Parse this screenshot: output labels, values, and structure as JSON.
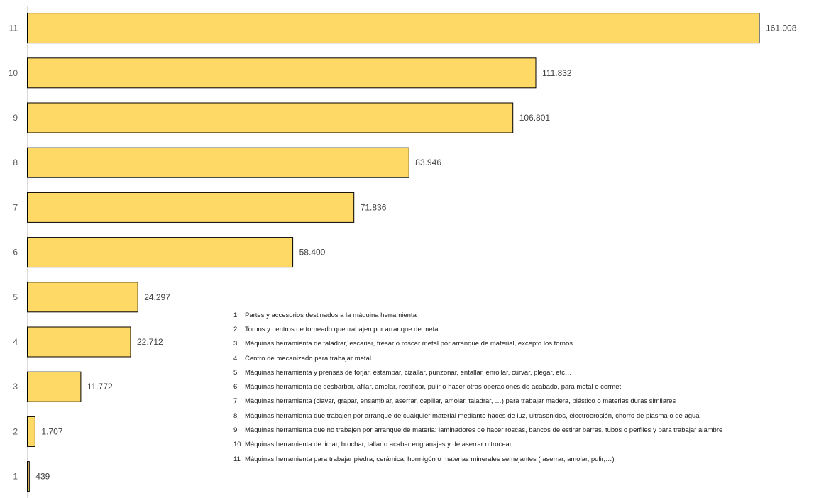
{
  "chart_data": {
    "type": "bar",
    "orientation": "horizontal",
    "categories": [
      "1",
      "2",
      "3",
      "4",
      "5",
      "6",
      "7",
      "8",
      "9",
      "10",
      "11"
    ],
    "values": [
      439,
      1707,
      11772,
      22712,
      24297,
      58400,
      71836,
      83946,
      106801,
      111832,
      161008
    ],
    "value_labels": [
      "439",
      "1.707",
      "11.772",
      "22.712",
      "24.297",
      "58.400",
      "71.836",
      "83.946",
      "106.801",
      "111.832",
      "161.008"
    ],
    "bar_color": "#FFD966",
    "bar_border_color": "#000000",
    "axis_color": "#D9D9D9",
    "xlim": [
      0,
      161008
    ],
    "grid": false,
    "legend_position": "bottom-right",
    "legend": [
      {
        "num": "1",
        "text": "Partes y accesorios destinados a la máquina herramienta"
      },
      {
        "num": "2",
        "text": "Tornos y centros de torneado que trabajen por arranque de metal"
      },
      {
        "num": "3",
        "text": "Máquinas herramienta de taladrar, escariar, fresar o roscar metal por arranque de material, excepto los tornos"
      },
      {
        "num": "4",
        "text": "Centro de mecanizado para trabajar metal"
      },
      {
        "num": "5",
        "text": "Máquinas herramienta y prensas de forjar, estampar, cizallar, punzonar, entallar, enrollar, curvar, plegar, etc…"
      },
      {
        "num": "6",
        "text": "Máquinas herramienta de desbarbar, afilar, amolar, rectificar, pulir o hacer otras operaciones de acabado, para metal o cermet"
      },
      {
        "num": "7",
        "text": "Máquinas herramienta (clavar, grapar, ensamblar, aserrar, cepillar, amolar, taladrar, …) para trabajar madera, plástico o materias duras similares"
      },
      {
        "num": "8",
        "text": "Máquinas herramienta que trabajen por arranque de cualquier material mediante haces de luz, ultrasonidos, electroerosión, chorro de plasma o de agua"
      },
      {
        "num": "9",
        "text": "Máquinas herramienta que no trabajen por arranque de materia: laminadores de hacer roscas, bancos de estirar barras, tubos o perfiles y para trabajar alambre"
      },
      {
        "num": "10",
        "text": "Máquinas herramienta de limar, brochar, tallar o acabar engranajes y de aserrar o trocear"
      },
      {
        "num": "11",
        "text": "Máquinas herramienta para trabajar piedra, cerámica, hormigón o materias minerales semejantes ( aserrar, amolar, pulir,…)"
      }
    ]
  }
}
